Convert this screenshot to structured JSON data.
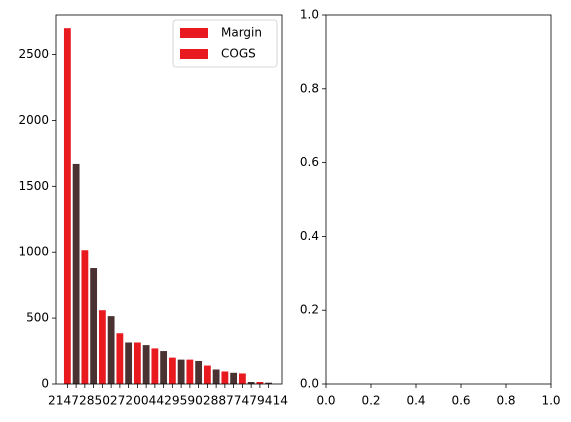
{
  "chart_data": [
    {
      "type": "bar",
      "title": "",
      "xlabel": "",
      "ylabel": "",
      "ylim": [
        0,
        2800
      ],
      "y_ticks": [
        0,
        500,
        1000,
        1500,
        2000,
        2500
      ],
      "x_ticks_text": "2147285027200442959028877479414",
      "grid": false,
      "legend_position": "top-right",
      "colors": {
        "primary": "#e8191f",
        "secondary": "#4a3232"
      },
      "bar_colors": [
        "primary",
        "secondary",
        "primary",
        "secondary",
        "primary",
        "secondary",
        "primary",
        "secondary",
        "primary",
        "secondary",
        "primary",
        "secondary",
        "primary",
        "secondary",
        "primary",
        "secondary",
        "primary",
        "secondary",
        "primary",
        "secondary",
        "primary",
        "secondary",
        "primary",
        "secondary"
      ],
      "values": [
        2700,
        1670,
        1015,
        880,
        560,
        515,
        385,
        315,
        315,
        295,
        270,
        250,
        200,
        185,
        185,
        175,
        140,
        110,
        95,
        85,
        80,
        15,
        15,
        10
      ],
      "legend": [
        {
          "label": "Margin",
          "color": "primary"
        },
        {
          "label": "COGS",
          "color": "primary"
        }
      ]
    },
    {
      "type": "scatter",
      "title": "",
      "xlabel": "",
      "ylabel": "",
      "xlim": [
        0,
        1
      ],
      "ylim": [
        0,
        1
      ],
      "x_ticks": [
        0.0,
        0.2,
        0.4,
        0.6,
        0.8,
        1.0
      ],
      "y_ticks": [
        0.0,
        0.2,
        0.4,
        0.6,
        0.8,
        1.0
      ],
      "grid": false,
      "series": []
    }
  ]
}
